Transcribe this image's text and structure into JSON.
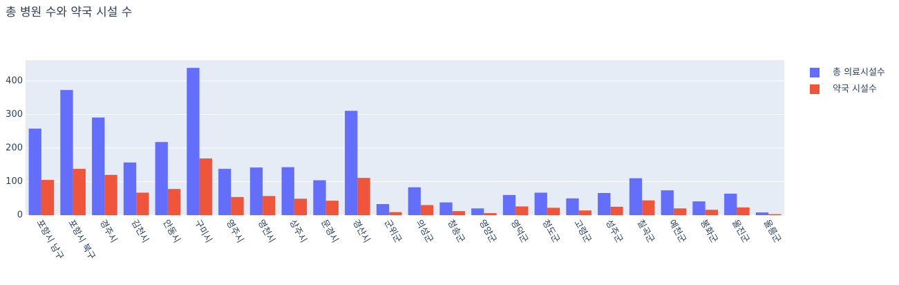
{
  "chart_data": {
    "type": "bar",
    "title": "총 병원 수와 약국 시설 수",
    "categories": [
      "포항시 남구",
      "포항시 북구",
      "경주시",
      "김천시",
      "안동시",
      "구미시",
      "영주시",
      "영천시",
      "상주시",
      "문경시",
      "경산시",
      "군위군",
      "의성군",
      "청송군",
      "영양군",
      "영덕군",
      "청도군",
      "고령군",
      "성주군",
      "칠곡군",
      "예천군",
      "봉화군",
      "울진군",
      "울릉군"
    ],
    "series": [
      {
        "name": "총 의료시설수",
        "color": "#636efa",
        "values": [
          258,
          373,
          291,
          157,
          218,
          439,
          138,
          142,
          143,
          104,
          311,
          33,
          83,
          38,
          20,
          60,
          67,
          50,
          66,
          110,
          74,
          41,
          64,
          8
        ]
      },
      {
        "name": "약국 시설수",
        "color": "#ef553b",
        "values": [
          105,
          138,
          120,
          67,
          78,
          169,
          54,
          57,
          49,
          43,
          111,
          9,
          30,
          12,
          6,
          26,
          22,
          14,
          25,
          44,
          20,
          16,
          23,
          3
        ]
      }
    ],
    "ylim": [
      0,
      462
    ],
    "yticks": [
      0,
      100,
      200,
      300,
      400
    ],
    "grid": true,
    "legend": "right"
  }
}
